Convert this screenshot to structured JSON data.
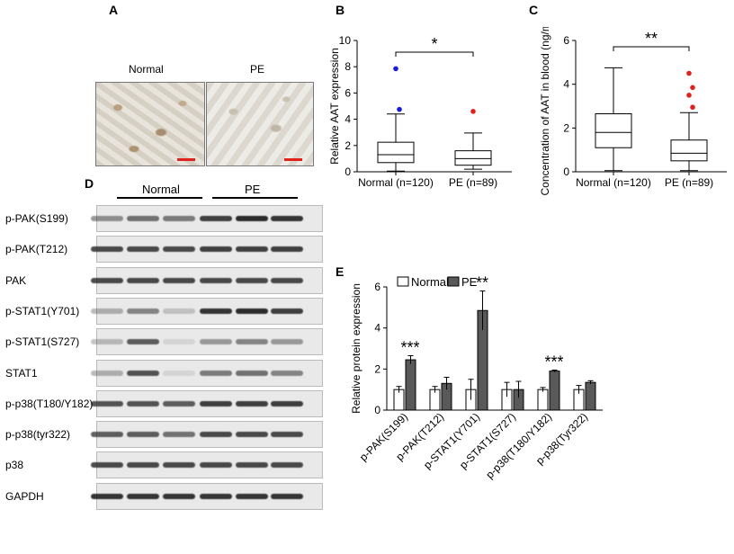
{
  "panels": {
    "a": "A",
    "b": "B",
    "c": "C",
    "d": "D",
    "e": "E"
  },
  "histology": {
    "normal_label": "Normal",
    "pe_label": "PE"
  },
  "blot": {
    "group_normal": "Normal",
    "group_pe": "PE",
    "rows": [
      {
        "label": "p-PAK(S199)",
        "intensity": [
          0.45,
          0.6,
          0.55,
          0.85,
          0.95,
          0.9
        ]
      },
      {
        "label": "p-PAK(T212)",
        "intensity": [
          0.8,
          0.8,
          0.8,
          0.85,
          0.85,
          0.85
        ]
      },
      {
        "label": "PAK",
        "intensity": [
          0.8,
          0.8,
          0.8,
          0.8,
          0.8,
          0.8
        ]
      },
      {
        "label": "p-STAT1(Y701)",
        "intensity": [
          0.3,
          0.5,
          0.2,
          0.9,
          0.95,
          0.85
        ]
      },
      {
        "label": "p-STAT1(S727)",
        "intensity": [
          0.25,
          0.7,
          0.1,
          0.4,
          0.5,
          0.4
        ]
      },
      {
        "label": "STAT1",
        "intensity": [
          0.3,
          0.75,
          0.1,
          0.55,
          0.6,
          0.5
        ]
      },
      {
        "label": "p-p38(T180/Y182)",
        "intensity": [
          0.75,
          0.75,
          0.7,
          0.85,
          0.85,
          0.85
        ]
      },
      {
        "label": "p-p38(tyr322)",
        "intensity": [
          0.7,
          0.7,
          0.6,
          0.8,
          0.8,
          0.8
        ]
      },
      {
        "label": "p38",
        "intensity": [
          0.8,
          0.8,
          0.8,
          0.8,
          0.8,
          0.8
        ]
      },
      {
        "label": "GAPDH",
        "intensity": [
          0.9,
          0.9,
          0.9,
          0.9,
          0.9,
          0.9
        ]
      }
    ]
  },
  "chart_data": [
    {
      "panel": "B",
      "type": "box",
      "ylabel": "Relative AAT expression",
      "ylim": [
        0,
        10
      ],
      "yticks": [
        0,
        2,
        4,
        6,
        8,
        10
      ],
      "categories": [
        "Normal (n=120)",
        "PE (n=89)"
      ],
      "boxes": [
        {
          "min": 0.05,
          "q1": 0.7,
          "median": 1.3,
          "q3": 2.25,
          "max": 4.4,
          "outliers": [
            7.85,
            4.75
          ],
          "outlier_color": "#1a1adf"
        },
        {
          "min": 0.2,
          "q1": 0.5,
          "median": 1.0,
          "q3": 1.6,
          "max": 2.95,
          "outliers": [
            4.6
          ],
          "outlier_color": "#e0221c"
        }
      ],
      "significance": "*"
    },
    {
      "panel": "C",
      "type": "box",
      "ylabel": "Concentration of AAT in blood (ng/ml)",
      "ylim": [
        0,
        6
      ],
      "yticks": [
        0,
        2,
        4,
        6
      ],
      "categories": [
        "Normal (n=120)",
        "PE (n=89)"
      ],
      "boxes": [
        {
          "min": 0.05,
          "q1": 1.1,
          "median": 1.8,
          "q3": 2.65,
          "max": 4.75,
          "outliers": []
        },
        {
          "min": 0.05,
          "q1": 0.5,
          "median": 0.85,
          "q3": 1.45,
          "max": 2.7,
          "outliers": [
            4.5,
            3.85,
            3.5,
            2.95
          ],
          "outlier_color": "#e0221c"
        }
      ],
      "significance": "**"
    },
    {
      "panel": "E",
      "type": "bar",
      "ylabel": "Relative protein expression",
      "ylim": [
        0,
        6
      ],
      "yticks": [
        0,
        2,
        4,
        6
      ],
      "categories": [
        "p-PAK(S199)",
        "p-PAK(T212)",
        "p-STAT1(Y701)",
        "p-STAT1(S727)",
        "p-p38(T180/Y182)",
        "p-p38(Tyr322)"
      ],
      "series": [
        {
          "name": "Normal",
          "values": [
            1.0,
            1.0,
            1.0,
            1.0,
            1.0,
            1.0
          ],
          "errors": [
            0.15,
            0.15,
            0.5,
            0.35,
            0.1,
            0.2
          ],
          "color": "#ffffff"
        },
        {
          "name": "PE",
          "values": [
            2.45,
            1.3,
            4.85,
            1.0,
            1.9,
            1.35
          ],
          "errors": [
            0.2,
            0.3,
            0.95,
            0.4,
            0.05,
            0.08
          ],
          "color": "#595959"
        }
      ],
      "significance": [
        "***",
        "",
        "**",
        "",
        "***",
        ""
      ]
    }
  ]
}
